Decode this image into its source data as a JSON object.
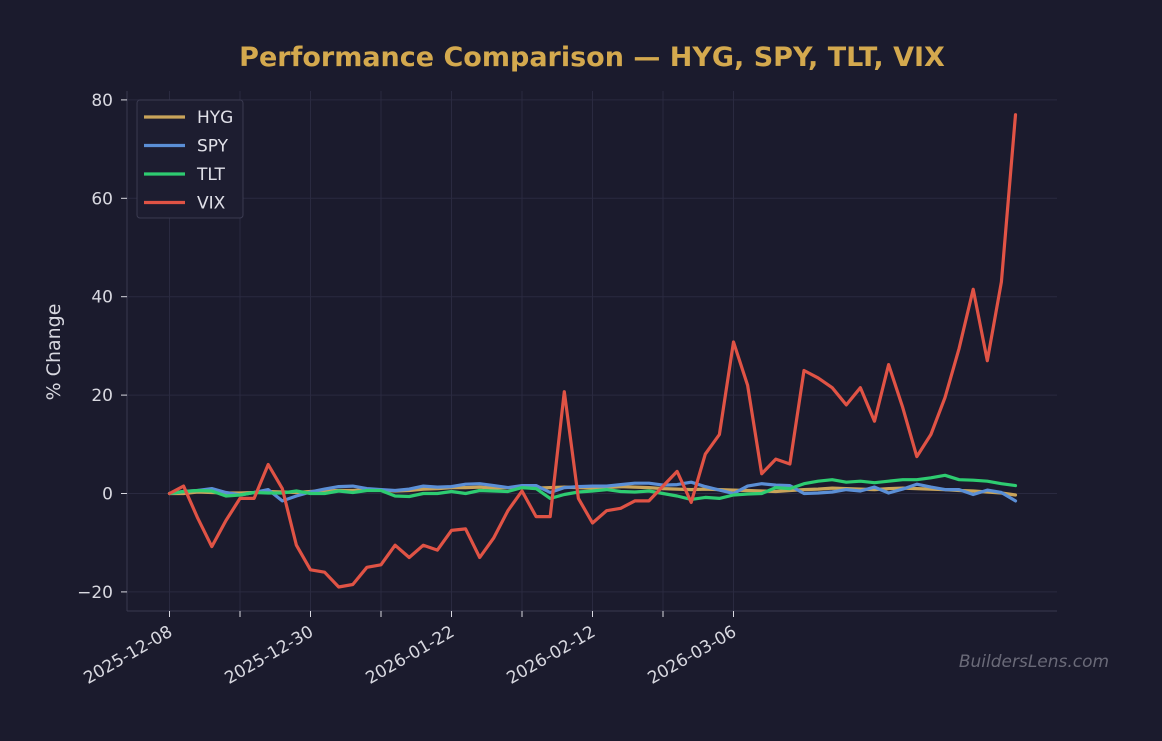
{
  "chart_data": {
    "type": "line",
    "title": "Performance Comparison — HYG, SPY, TLT, VIX",
    "ylabel": "% Change",
    "xlabel": "",
    "ylim": [
      -24,
      82
    ],
    "yticks": [
      -20,
      0,
      20,
      40,
      60,
      80
    ],
    "ytick_labels": [
      "−20",
      "0",
      "20",
      "40",
      "60",
      "80"
    ],
    "xtick_labels": [
      "2025-12-08",
      "2025-12-30",
      "2026-01-22",
      "2026-02-12",
      "2026-03-06"
    ],
    "xtick_label_index": [
      0,
      10,
      20,
      30,
      40
    ],
    "n_points": 61,
    "minor_tick_index": [
      5,
      15,
      25,
      35
    ],
    "grid": true,
    "legend_position": "top-left",
    "watermark": "BuildersLens.com",
    "colors": {
      "background": "#1b1b2d",
      "grid": "#2a2a40",
      "title": "#d4a94e"
    },
    "series": [
      {
        "name": "HYG",
        "color": "#c9a45a",
        "values": [
          0,
          0,
          0.3,
          0.2,
          0.1,
          0.1,
          0.2,
          0.4,
          0.3,
          0.2,
          0.4,
          0.5,
          0.6,
          0.6,
          0.8,
          0.7,
          0.5,
          0.6,
          0.9,
          1,
          1.2,
          1.2,
          1.3,
          1.1,
          1.2,
          1.2,
          1.1,
          1.2,
          1.3,
          1.2,
          1.1,
          1.2,
          1.4,
          1.3,
          1.2,
          1,
          0.9,
          0.8,
          0.9,
          0.8,
          0.7,
          0.6,
          0.5,
          0.4,
          0.6,
          0.8,
          0.9,
          1.1,
          1.0,
          0.9,
          0.8,
          1.0,
          1.1,
          1.0,
          0.9,
          0.8,
          0.6,
          0.5,
          0.3,
          0.1,
          -0.3
        ]
      },
      {
        "name": "SPY",
        "color": "#5b8fd6",
        "values": [
          0,
          0.4,
          0.6,
          1.0,
          0.2,
          -0.3,
          0.2,
          0.8,
          -1.5,
          -0.5,
          0.3,
          0.9,
          1.4,
          1.5,
          1.0,
          0.8,
          0.6,
          0.9,
          1.5,
          1.3,
          1.4,
          1.9,
          2.0,
          1.6,
          1.2,
          1.6,
          1.6,
          0.2,
          1.2,
          1.4,
          1.5,
          1.5,
          1.8,
          2.1,
          2.1,
          1.7,
          1.8,
          2.3,
          1.4,
          0.7,
          0.0,
          1.5,
          2.0,
          1.7,
          1.6,
          0.0,
          0.1,
          0.3,
          0.8,
          0.5,
          1.3,
          0.1,
          0.9,
          1.9,
          1.3,
          0.8,
          0.8,
          -0.2,
          0.7,
          0.2,
          -1.5
        ]
      },
      {
        "name": "TLT",
        "color": "#2ecc71",
        "values": [
          0,
          0.4,
          0.6,
          0.5,
          -0.5,
          -0.3,
          0.2,
          0.1,
          0.1,
          0.5,
          0.0,
          0.0,
          0.5,
          0.2,
          0.6,
          0.6,
          -0.5,
          -0.6,
          0.0,
          0.0,
          0.4,
          0.0,
          0.6,
          0.5,
          0.4,
          1.2,
          1.0,
          -1.0,
          -0.2,
          0.3,
          0.5,
          0.8,
          0.4,
          0.3,
          0.5,
          0.0,
          -0.5,
          -1.2,
          -0.8,
          -1.0,
          -0.3,
          -0.1,
          0.0,
          1.2,
          1.0,
          2.0,
          2.5,
          2.8,
          2.3,
          2.5,
          2.2,
          2.5,
          2.8,
          2.8,
          3.2,
          3.7,
          2.8,
          2.7,
          2.5,
          2.0,
          1.6
        ]
      },
      {
        "name": "VIX",
        "color": "#e05345",
        "values": [
          0,
          1.5,
          -5,
          -10.8,
          -5.5,
          -1,
          -1,
          5.9,
          1,
          -10.5,
          -15.5,
          -16,
          -19,
          -18.5,
          -15,
          -14.5,
          -10.5,
          -13,
          -10.5,
          -11.5,
          -7.5,
          -7.2,
          -13,
          -9,
          -3.5,
          0.5,
          -4.7,
          -4.7,
          20.7,
          -1,
          -6,
          -3.5,
          -3,
          -1.5,
          -1.5,
          1.5,
          4.5,
          -1.8,
          8,
          12,
          30.8,
          22,
          4,
          7,
          6,
          25,
          23.5,
          21.5,
          18,
          21.5,
          14.7,
          26.2,
          17.5,
          7.5,
          12,
          19.5,
          29.5,
          41.5,
          27,
          43,
          77
        ]
      }
    ]
  }
}
